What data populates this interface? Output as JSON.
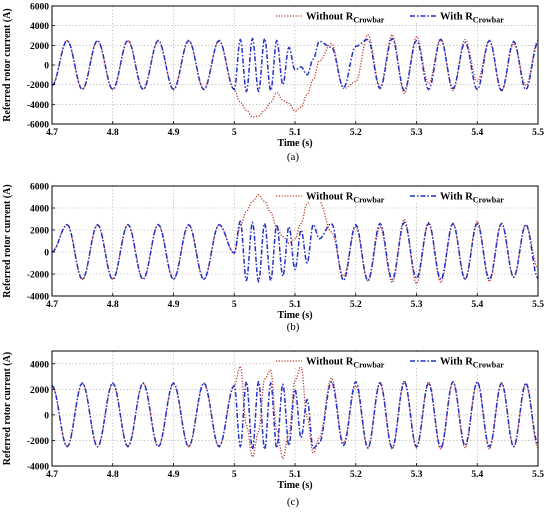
{
  "figure": {
    "captions": [
      "(a)",
      "(b)",
      "(c)"
    ]
  },
  "colors": {
    "without_crowbar": "#c0392b",
    "with_crowbar": "#2430c8",
    "axis": "#000000",
    "grid": "#9a9a9a"
  },
  "chart_data": [
    {
      "type": "line",
      "panel": "a",
      "xlabel": "Time (s)",
      "ylabel": "Referred rotor current (A)",
      "xlim": [
        4.7,
        5.5
      ],
      "ylim": [
        -6000,
        6000
      ],
      "xticks": [
        4.7,
        4.8,
        4.9,
        5,
        5.1,
        5.2,
        5.3,
        5.4,
        5.5
      ],
      "yticks": [
        -6000,
        -4000,
        -2000,
        0,
        2000,
        4000,
        6000
      ],
      "grid": true,
      "legend_placement": "top-right",
      "series": [
        {
          "name": "Without R",
          "name_subscript": "Crowbar",
          "style": "dotted",
          "x": [
            4.7,
            4.725,
            4.75,
            4.775,
            4.8,
            4.825,
            4.85,
            4.875,
            4.9,
            4.925,
            4.95,
            4.975,
            5.0,
            5.01,
            5.02,
            5.03,
            5.04,
            5.05,
            5.06,
            5.07,
            5.08,
            5.09,
            5.1,
            5.11,
            5.12,
            5.13,
            5.14,
            5.16,
            5.18,
            5.2,
            5.22,
            5.24,
            5.26,
            5.28,
            5.3,
            5.32,
            5.34,
            5.36,
            5.38,
            5.4,
            5.42,
            5.44,
            5.46,
            5.48,
            5.5
          ],
          "y": [
            -2100,
            2500,
            -2500,
            2500,
            -2500,
            2500,
            -2500,
            2500,
            -2500,
            2500,
            -2500,
            2500,
            -2500,
            -3800,
            -4600,
            -5300,
            -5200,
            -4600,
            -3800,
            -2800,
            -3600,
            -3900,
            -4700,
            -4300,
            -3000,
            -1500,
            400,
            2200,
            -2400,
            -1700,
            3100,
            -2200,
            3100,
            -2900,
            2900,
            -1900,
            2700,
            -2600,
            2600,
            -1700,
            2500,
            -2700,
            2200,
            -2100,
            2500
          ]
        },
        {
          "name": "With R",
          "name_subscript": "Crowbar",
          "style": "dash-dot",
          "x": [
            4.7,
            4.725,
            4.75,
            4.775,
            4.8,
            4.825,
            4.85,
            4.875,
            4.9,
            4.925,
            4.95,
            4.975,
            5.0,
            5.01,
            5.02,
            5.03,
            5.04,
            5.05,
            5.06,
            5.07,
            5.08,
            5.09,
            5.1,
            5.11,
            5.12,
            5.13,
            5.14,
            5.16,
            5.18,
            5.2,
            5.22,
            5.24,
            5.26,
            5.28,
            5.3,
            5.32,
            5.34,
            5.36,
            5.38,
            5.4,
            5.42,
            5.44,
            5.46,
            5.48,
            5.5
          ],
          "y": [
            -2100,
            2500,
            -2500,
            2500,
            -2500,
            2500,
            -2500,
            2500,
            -2500,
            2500,
            -2500,
            2500,
            -2500,
            2600,
            -2700,
            2700,
            -2700,
            2700,
            -2600,
            2500,
            -2000,
            1800,
            -500,
            -200,
            -1000,
            600,
            2400,
            1800,
            -2300,
            1900,
            2600,
            -2400,
            2700,
            -2600,
            2500,
            -2500,
            2600,
            -2400,
            2300,
            -2500,
            2500,
            -2600,
            2400,
            -2500,
            2300
          ]
        }
      ]
    },
    {
      "type": "line",
      "panel": "b",
      "xlabel": "Time (s)",
      "ylabel": "Referred rotor current (A)",
      "xlim": [
        4.7,
        5.5
      ],
      "ylim": [
        -4000,
        6000
      ],
      "xticks": [
        4.7,
        4.8,
        4.9,
        5,
        5.1,
        5.2,
        5.3,
        5.4,
        5.5
      ],
      "yticks": [
        -4000,
        -2000,
        0,
        2000,
        4000,
        6000
      ],
      "grid": true,
      "legend_placement": "top-right",
      "series": [
        {
          "name": "Without R",
          "name_subscript": "Crowbar",
          "style": "dotted",
          "x": [
            4.7,
            4.725,
            4.75,
            4.775,
            4.8,
            4.825,
            4.85,
            4.875,
            4.9,
            4.925,
            4.95,
            4.975,
            5.0,
            5.01,
            5.02,
            5.03,
            5.04,
            5.05,
            5.06,
            5.07,
            5.08,
            5.09,
            5.1,
            5.11,
            5.12,
            5.13,
            5.14,
            5.16,
            5.18,
            5.2,
            5.22,
            5.24,
            5.26,
            5.28,
            5.3,
            5.32,
            5.34,
            5.36,
            5.38,
            5.4,
            5.42,
            5.44,
            5.46,
            5.48,
            5.5
          ],
          "y": [
            0,
            2500,
            -2500,
            2500,
            -2500,
            2500,
            -2500,
            2500,
            -2500,
            2500,
            -2500,
            2500,
            -100,
            2400,
            3700,
            4600,
            5200,
            4600,
            3600,
            2200,
            1400,
            800,
            1200,
            2600,
            4400,
            5100,
            4600,
            1800,
            -2200,
            2300,
            -2700,
            2300,
            -2800,
            3000,
            -2900,
            2700,
            -2800,
            2600,
            -2500,
            2800,
            -2700,
            2600,
            -2300,
            2500,
            -1500
          ]
        },
        {
          "name": "With R",
          "name_subscript": "Crowbar",
          "style": "dash-dot",
          "x": [
            4.7,
            4.725,
            4.75,
            4.775,
            4.8,
            4.825,
            4.85,
            4.875,
            4.9,
            4.925,
            4.95,
            4.975,
            5.0,
            5.01,
            5.02,
            5.03,
            5.04,
            5.05,
            5.06,
            5.07,
            5.08,
            5.09,
            5.1,
            5.11,
            5.12,
            5.13,
            5.14,
            5.16,
            5.18,
            5.2,
            5.22,
            5.24,
            5.26,
            5.28,
            5.3,
            5.32,
            5.34,
            5.36,
            5.38,
            5.4,
            5.42,
            5.44,
            5.46,
            5.48,
            5.5
          ],
          "y": [
            0,
            2500,
            -2500,
            2500,
            -2500,
            2500,
            -2500,
            2500,
            -2500,
            2500,
            -2500,
            2500,
            -100,
            2800,
            -2600,
            2700,
            -2700,
            2600,
            -2600,
            2500,
            -2200,
            2300,
            -1600,
            2000,
            -1000,
            2500,
            1200,
            2600,
            -2600,
            2500,
            -2600,
            2600,
            -2500,
            2700,
            -2400,
            2600,
            -2500,
            2600,
            -2500,
            2600,
            -2500,
            2600,
            -2300,
            2500,
            -2400
          ]
        }
      ]
    },
    {
      "type": "line",
      "panel": "c",
      "xlabel": "Time (s)",
      "ylabel": "Referred rotor current (A)",
      "xlim": [
        4.7,
        5.5
      ],
      "ylim": [
        -4000,
        5000
      ],
      "xticks": [
        4.7,
        4.8,
        4.9,
        5,
        5.1,
        5.2,
        5.3,
        5.4,
        5.5
      ],
      "yticks": [
        -4000,
        -2000,
        0,
        2000,
        4000
      ],
      "grid": true,
      "legend_placement": "top-right",
      "series": [
        {
          "name": "Without R",
          "name_subscript": "Crowbar",
          "style": "dotted",
          "x": [
            4.7,
            4.725,
            4.75,
            4.775,
            4.8,
            4.825,
            4.85,
            4.875,
            4.9,
            4.925,
            4.95,
            4.975,
            5.0,
            5.01,
            5.02,
            5.03,
            5.04,
            5.05,
            5.06,
            5.07,
            5.08,
            5.09,
            5.1,
            5.11,
            5.12,
            5.13,
            5.14,
            5.16,
            5.18,
            5.2,
            5.22,
            5.24,
            5.26,
            5.28,
            5.3,
            5.32,
            5.34,
            5.36,
            5.38,
            5.4,
            5.42,
            5.44,
            5.46,
            5.48,
            5.5
          ],
          "y": [
            2300,
            -2500,
            2500,
            -2500,
            2500,
            -2500,
            2500,
            -2500,
            2500,
            -2500,
            2500,
            -2500,
            2300,
            3800,
            -800,
            -3300,
            -1300,
            2800,
            3500,
            -1200,
            -3400,
            -1500,
            2700,
            3800,
            -200,
            -3000,
            -1800,
            2900,
            -2200,
            2300,
            -2600,
            2600,
            -2700,
            2700,
            -2600,
            2600,
            -2700,
            2600,
            -2600,
            2600,
            -2700,
            2500,
            -2500,
            2400,
            -2600
          ]
        },
        {
          "name": "With R",
          "name_subscript": "Crowbar",
          "style": "dash-dot",
          "x": [
            4.7,
            4.725,
            4.75,
            4.775,
            4.8,
            4.825,
            4.85,
            4.875,
            4.9,
            4.925,
            4.95,
            4.975,
            5.0,
            5.01,
            5.02,
            5.03,
            5.04,
            5.05,
            5.06,
            5.07,
            5.08,
            5.09,
            5.1,
            5.11,
            5.12,
            5.13,
            5.14,
            5.16,
            5.18,
            5.2,
            5.22,
            5.24,
            5.26,
            5.28,
            5.3,
            5.32,
            5.34,
            5.36,
            5.38,
            5.4,
            5.42,
            5.44,
            5.46,
            5.48,
            5.5
          ],
          "y": [
            2300,
            -2500,
            2500,
            -2500,
            2500,
            -2500,
            2500,
            -2500,
            2500,
            -2500,
            2500,
            -2500,
            2300,
            -2500,
            2600,
            -2700,
            2600,
            -2700,
            2500,
            -2600,
            2400,
            -2400,
            2000,
            -1800,
            1200,
            -2600,
            -2200,
            2600,
            -2400,
            2600,
            -2600,
            2500,
            -2600,
            2600,
            -2500,
            2500,
            -2600,
            2600,
            -2400,
            2600,
            -2500,
            2500,
            -2500,
            2500,
            -2300
          ]
        }
      ]
    }
  ]
}
